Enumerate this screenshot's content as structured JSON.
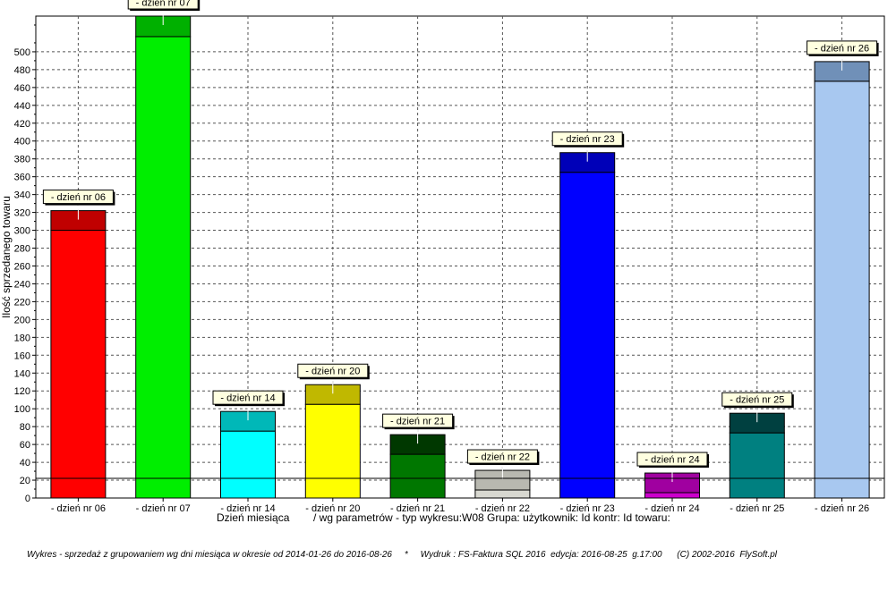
{
  "chart_data": {
    "type": "bar",
    "stacked": true,
    "categories": [
      "- dzień nr 06",
      "- dzień nr 07",
      "- dzień nr 14",
      "- dzień nr 20",
      "- dzień nr 21",
      "- dzień nr 22",
      "- dzień nr 23",
      "- dzień nr 24",
      "- dzień nr 25",
      "- dzień nr 26"
    ],
    "bar_labels": [
      "- dzień nr 06",
      "- dzień nr 07",
      "- dzień nr 14",
      "- dzień nr 20",
      "- dzień nr 21",
      "- dzień nr 22",
      "- dzień nr 23",
      "- dzień nr 24",
      "- dzień nr 25",
      "- dzień nr 26"
    ],
    "totals": [
      322,
      540,
      97,
      127,
      71,
      31,
      387,
      28,
      95,
      489
    ],
    "base_values": [
      300,
      517,
      75,
      105,
      49,
      9,
      365,
      6,
      73,
      467
    ],
    "colors": [
      "#ff0000",
      "#00ee00",
      "#00ffff",
      "#ffff00",
      "#007700",
      "#d8d8d0",
      "#0000ff",
      "#cc00cc",
      "#008080",
      "#a8c8f0"
    ],
    "top_colors": [
      "#c00000",
      "#00b000",
      "#00b8b8",
      "#c0b800",
      "#003800",
      "#b8b8b0",
      "#0000b8",
      "#a000a0",
      "#004040",
      "#7090b8"
    ],
    "ylim": [
      0,
      540
    ],
    "yticks": [
      0,
      20,
      40,
      60,
      80,
      100,
      120,
      140,
      160,
      180,
      200,
      220,
      240,
      260,
      280,
      300,
      320,
      340,
      360,
      380,
      400,
      420,
      440,
      460,
      480,
      500
    ],
    "reference_line": 22,
    "ylabel": "Ilość sprzedanego towaru",
    "xlabel": "Dzień miesiąca",
    "subtitle": "/ wg parametrów - typ wykresu:W08 Grupa: użytkownik: Id kontr: Id towaru:",
    "grid": true
  },
  "footer": "Wykres - sprzedaż z grupowaniem wg dni miesiąca w okresie od 2014-01-26 do 2016-08-26     *     Wydruk : FS-Faktura SQL 2016  edycja: 2016-08-25  g.17:00      (C) 2002-2016  FlySoft.pl"
}
